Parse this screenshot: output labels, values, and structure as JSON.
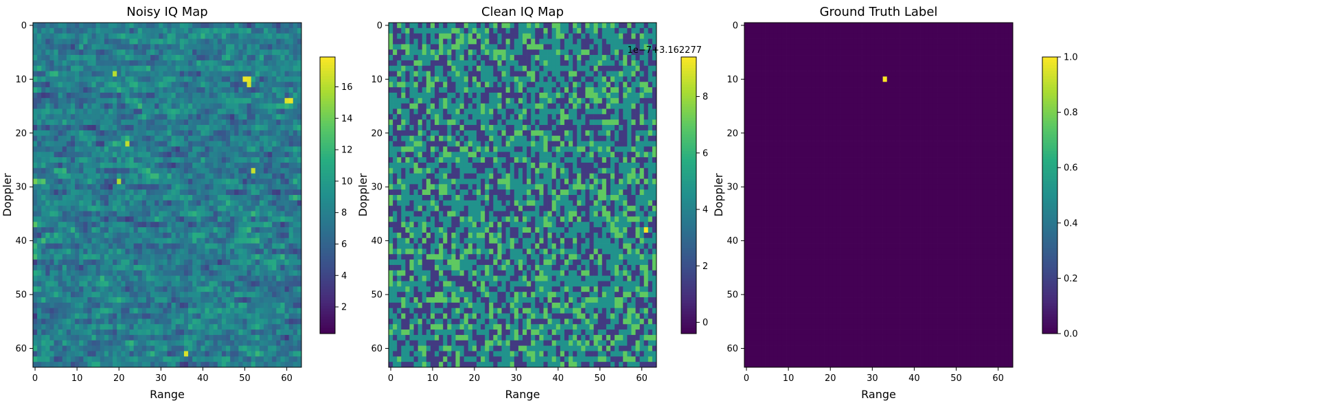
{
  "chart_data": [
    {
      "type": "heatmap",
      "title": "Noisy IQ Map",
      "xlabel": "Range",
      "ylabel": "Doppler",
      "grid": false,
      "rows": 64,
      "cols": 64,
      "xticks": [
        "0",
        "10",
        "20",
        "30",
        "40",
        "50",
        "60"
      ],
      "yticks": [
        "0",
        "10",
        "20",
        "30",
        "40",
        "50",
        "60"
      ],
      "colorbar": {
        "range": [
          0.3,
          17.9
        ],
        "ticks": [
          "2",
          "4",
          "6",
          "8",
          "10",
          "12",
          "14",
          "16"
        ],
        "offset_text": ""
      },
      "colormap": "viridis",
      "description_of_values": "random noise amplitudes, horizontally streaked",
      "value_model": {
        "kind": "noise",
        "seed": 17,
        "min": 0.3,
        "max": 17.9
      },
      "highlights": [
        {
          "row": 10,
          "col": 50,
          "value": 17.5
        },
        {
          "row": 10,
          "col": 51,
          "value": 17.2
        },
        {
          "row": 11,
          "col": 51,
          "value": 16.8
        },
        {
          "row": 14,
          "col": 60,
          "value": 17.0
        },
        {
          "row": 14,
          "col": 61,
          "value": 17.4
        },
        {
          "row": 9,
          "col": 19,
          "value": 16.0
        },
        {
          "row": 22,
          "col": 22,
          "value": 16.2
        },
        {
          "row": 29,
          "col": 20,
          "value": 15.8
        },
        {
          "row": 27,
          "col": 52,
          "value": 16.5
        },
        {
          "row": 61,
          "col": 36,
          "value": 16.9
        }
      ]
    },
    {
      "type": "heatmap",
      "title": "Clean IQ Map",
      "xlabel": "Range",
      "ylabel": "Doppler",
      "grid": false,
      "rows": 64,
      "cols": 64,
      "xticks": [
        "0",
        "10",
        "20",
        "30",
        "40",
        "50",
        "60"
      ],
      "yticks": [
        "0",
        "10",
        "20",
        "30",
        "40",
        "50",
        "60"
      ],
      "colorbar": {
        "range": [
          -0.4,
          9.4
        ],
        "ticks": [
          "0",
          "2",
          "4",
          "6",
          "8"
        ],
        "offset_text": "1e−7+3.162277"
      },
      "colormap": "viridis",
      "value_model": {
        "kind": "quantized",
        "seed": 91,
        "levels": [
          1.3,
          4.6,
          7.0
        ],
        "weights": [
          0.36,
          0.46,
          0.18
        ]
      },
      "highlights": [
        {
          "row": 38,
          "col": 61,
          "value": 9.4
        }
      ]
    },
    {
      "type": "heatmap",
      "title": "Ground Truth Label",
      "xlabel": "Range",
      "ylabel": "Doppler",
      "grid": false,
      "rows": 64,
      "cols": 64,
      "xticks": [
        "0",
        "10",
        "20",
        "30",
        "40",
        "50",
        "60"
      ],
      "yticks": [
        "0",
        "10",
        "20",
        "30",
        "40",
        "50",
        "60"
      ],
      "colorbar": {
        "range": [
          0.0,
          1.0
        ],
        "ticks": [
          "0.0",
          "0.2",
          "0.4",
          "0.6",
          "0.8",
          "1.0"
        ],
        "offset_text": ""
      },
      "colormap": "viridis",
      "value_model": {
        "kind": "constant",
        "value": 0.0
      },
      "highlights": [
        {
          "row": 10,
          "col": 33,
          "value": 1.0
        }
      ]
    }
  ]
}
